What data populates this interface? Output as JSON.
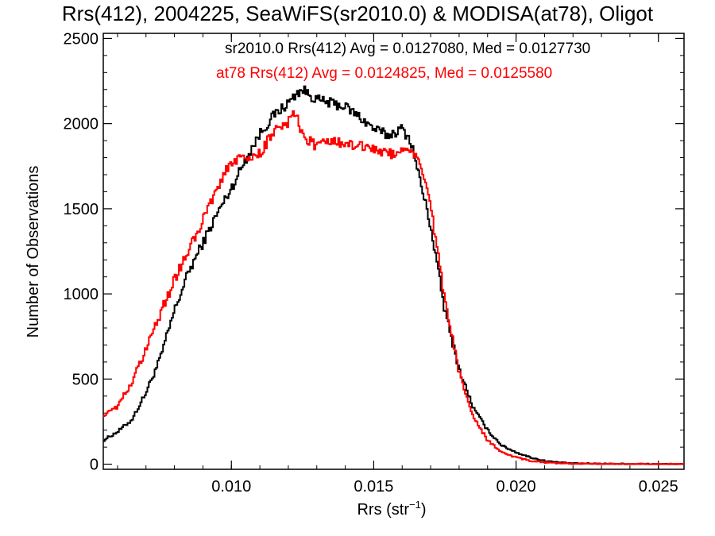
{
  "chart_data": {
    "type": "line",
    "title": "Rrs(412), 2004225, SeaWiFS(sr2010.0) & MODISA(at78), Oligot",
    "xlabel": "Rrs (str",
    "xlabel_sup": "−1",
    "xlabel_close": ")",
    "ylabel": "Number of Observations",
    "xlim": [
      0.0055,
      0.0259
    ],
    "ylim": [
      -30,
      2530
    ],
    "xticks": [
      0.01,
      0.015,
      0.02,
      0.025
    ],
    "xtick_labels": [
      "0.010",
      "0.015",
      "0.020",
      "0.025"
    ],
    "yticks": [
      0,
      500,
      1000,
      1500,
      2000,
      2500
    ],
    "ytick_labels": [
      "0",
      "500",
      "1000",
      "1500",
      "2000",
      "2500"
    ],
    "grid": false,
    "legend_position": "top-right",
    "annotations": [
      {
        "text": "sr2010.0 Rrs(412) Avg = 0.0127080, Med = 0.0127730",
        "color": "#000000"
      },
      {
        "text": "at78 Rrs(412) Avg = 0.0124825, Med = 0.0125580",
        "color": "#ff0000"
      }
    ],
    "series": [
      {
        "color": "#000000",
        "x": [
          0.0055,
          0.006,
          0.0065,
          0.007,
          0.0075,
          0.008,
          0.0085,
          0.009,
          0.0095,
          0.01,
          0.0105,
          0.011,
          0.0115,
          0.012,
          0.0123,
          0.0125,
          0.013,
          0.0135,
          0.014,
          0.0145,
          0.015,
          0.0155,
          0.016,
          0.0163,
          0.0165,
          0.017,
          0.0175,
          0.018,
          0.0185,
          0.019,
          0.0195,
          0.02,
          0.0205,
          0.021,
          0.0215,
          0.022,
          0.023,
          0.024,
          0.0259
        ],
        "y": [
          140,
          190,
          260,
          420,
          620,
          900,
          1130,
          1300,
          1470,
          1620,
          1790,
          1940,
          2050,
          2120,
          2180,
          2200,
          2140,
          2120,
          2100,
          2040,
          1970,
          1930,
          1970,
          1900,
          1760,
          1400,
          900,
          560,
          330,
          200,
          110,
          70,
          40,
          20,
          10,
          5,
          3,
          2,
          0
        ]
      },
      {
        "color": "#ff0000",
        "x": [
          0.0055,
          0.006,
          0.0065,
          0.007,
          0.0075,
          0.008,
          0.0085,
          0.009,
          0.0095,
          0.01,
          0.0105,
          0.011,
          0.0115,
          0.012,
          0.0123,
          0.0125,
          0.013,
          0.0135,
          0.014,
          0.0145,
          0.015,
          0.0155,
          0.016,
          0.0163,
          0.0165,
          0.017,
          0.0175,
          0.018,
          0.0185,
          0.019,
          0.0195,
          0.02,
          0.0205,
          0.021,
          0.0215,
          0.022,
          0.023,
          0.024,
          0.0259
        ],
        "y": [
          290,
          340,
          480,
          670,
          880,
          1080,
          1260,
          1430,
          1620,
          1780,
          1800,
          1820,
          1960,
          2010,
          2070,
          1920,
          1870,
          1900,
          1880,
          1870,
          1850,
          1820,
          1830,
          1820,
          1820,
          1520,
          960,
          540,
          280,
          140,
          70,
          40,
          20,
          10,
          5,
          3,
          2,
          1,
          0
        ]
      }
    ]
  }
}
